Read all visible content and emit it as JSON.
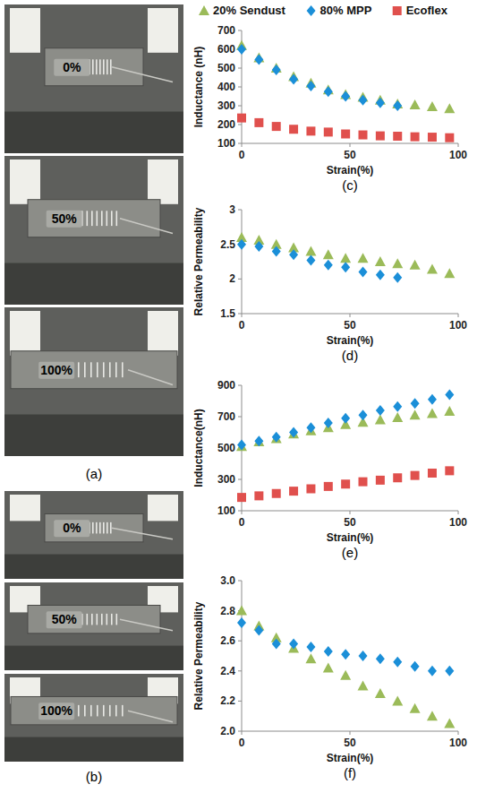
{
  "panels": [
    {
      "label": "(a)",
      "frames": [
        "0%",
        "50%",
        "100%"
      ]
    },
    {
      "label": "(b)",
      "frames": [
        "0%",
        "50%",
        "100%"
      ]
    }
  ],
  "chart_data": [
    {
      "type": "scatter",
      "title": "(c)",
      "x_label": "Strain(%)",
      "y_label": "Inductance (nH)",
      "xlim": [
        0,
        100
      ],
      "xticks": [
        0,
        50,
        100
      ],
      "ylim": [
        100,
        700
      ],
      "yticks": [
        100,
        200,
        300,
        400,
        500,
        600,
        700
      ],
      "grid": false,
      "legend": "top",
      "series": [
        {
          "name": "20% Sendust",
          "color": "#9bbb59",
          "marker": "triangle",
          "x": [
            0,
            8,
            16,
            24,
            32,
            40,
            48,
            56,
            64,
            72,
            80,
            88,
            96
          ],
          "values": [
            620,
            555,
            500,
            455,
            420,
            385,
            360,
            345,
            330,
            310,
            305,
            295,
            285
          ]
        },
        {
          "name": "80% MPP",
          "color": "#1b8fd8",
          "marker": "diamond",
          "x": [
            0,
            8,
            16,
            24,
            32,
            40,
            48,
            56,
            64,
            72
          ],
          "values": [
            600,
            545,
            490,
            440,
            405,
            375,
            350,
            330,
            315,
            300
          ]
        },
        {
          "name": "Ecoflex",
          "color": "#e0504d",
          "marker": "square",
          "x": [
            0,
            8,
            16,
            24,
            32,
            40,
            48,
            56,
            64,
            72,
            80,
            88,
            96
          ],
          "values": [
            235,
            210,
            190,
            175,
            165,
            160,
            150,
            145,
            140,
            138,
            135,
            133,
            130
          ]
        }
      ]
    },
    {
      "type": "scatter",
      "title": "(d)",
      "x_label": "Strain(%)",
      "y_label": "Relative Permeability",
      "xlim": [
        0,
        100
      ],
      "xticks": [
        0,
        50,
        100
      ],
      "ylim": [
        1.5,
        3
      ],
      "yticks": [
        1.5,
        2,
        2.5,
        3
      ],
      "grid": false,
      "series": [
        {
          "color": "#9bbb59",
          "marker": "triangle",
          "x": [
            0,
            8,
            16,
            24,
            32,
            40,
            48,
            56,
            64,
            72,
            80,
            88,
            96
          ],
          "values": [
            2.6,
            2.56,
            2.5,
            2.45,
            2.4,
            2.35,
            2.3,
            2.3,
            2.25,
            2.22,
            2.2,
            2.14,
            2.08
          ]
        },
        {
          "color": "#1b8fd8",
          "marker": "diamond",
          "x": [
            0,
            8,
            16,
            24,
            32,
            40,
            48,
            56,
            64,
            72
          ],
          "values": [
            2.5,
            2.47,
            2.4,
            2.35,
            2.27,
            2.2,
            2.17,
            2.1,
            2.06,
            2.02
          ]
        }
      ]
    },
    {
      "type": "scatter",
      "title": "(e)",
      "x_label": "Strain(%)",
      "y_label": "Inductance(nH)",
      "xlim": [
        0,
        100
      ],
      "xticks": [
        0,
        50,
        100
      ],
      "ylim": [
        100,
        900
      ],
      "yticks": [
        100,
        300,
        500,
        700,
        900
      ],
      "grid": false,
      "series": [
        {
          "color": "#9bbb59",
          "marker": "triangle",
          "x": [
            0,
            8,
            16,
            24,
            32,
            40,
            48,
            56,
            64,
            72,
            80,
            88,
            96
          ],
          "values": [
            510,
            540,
            560,
            590,
            610,
            630,
            650,
            665,
            680,
            695,
            710,
            720,
            735
          ]
        },
        {
          "color": "#1b8fd8",
          "marker": "diamond",
          "x": [
            0,
            8,
            16,
            24,
            32,
            40,
            48,
            56,
            64,
            72,
            80,
            88,
            96
          ],
          "values": [
            520,
            545,
            570,
            600,
            630,
            660,
            690,
            710,
            740,
            765,
            785,
            810,
            840
          ]
        },
        {
          "color": "#e0504d",
          "marker": "square",
          "x": [
            0,
            8,
            16,
            24,
            32,
            40,
            48,
            56,
            64,
            72,
            80,
            88,
            96
          ],
          "values": [
            185,
            195,
            210,
            225,
            240,
            255,
            270,
            285,
            295,
            310,
            325,
            340,
            355
          ]
        }
      ]
    },
    {
      "type": "scatter",
      "title": "(f)",
      "x_label": "Strain(%)",
      "y_label": "Relative Permeability",
      "xlim": [
        0,
        100
      ],
      "xticks": [
        0,
        50,
        100
      ],
      "ylim": [
        2,
        3
      ],
      "yticks": [
        {
          "value": 2,
          "label": "2.0"
        },
        {
          "value": 2.2,
          "label": "2.2"
        },
        {
          "value": 2.4,
          "label": "2.4"
        },
        {
          "value": 2.6,
          "label": "2.6"
        },
        {
          "value": 2.8,
          "label": "2.8"
        },
        {
          "value": 3,
          "label": "3.0"
        }
      ],
      "grid": false,
      "series": [
        {
          "color": "#9bbb59",
          "marker": "triangle",
          "x": [
            0,
            8,
            16,
            24,
            32,
            40,
            48,
            56,
            64,
            72,
            80,
            88,
            96
          ],
          "values": [
            2.8,
            2.7,
            2.62,
            2.55,
            2.48,
            2.42,
            2.37,
            2.3,
            2.25,
            2.2,
            2.15,
            2.1,
            2.05
          ]
        },
        {
          "color": "#1b8fd8",
          "marker": "diamond",
          "x": [
            0,
            8,
            16,
            24,
            32,
            40,
            48,
            56,
            64,
            72,
            80,
            88,
            96
          ],
          "values": [
            2.72,
            2.67,
            2.58,
            2.58,
            2.56,
            2.53,
            2.51,
            2.5,
            2.48,
            2.46,
            2.43,
            2.4,
            2.4
          ]
        }
      ]
    }
  ]
}
